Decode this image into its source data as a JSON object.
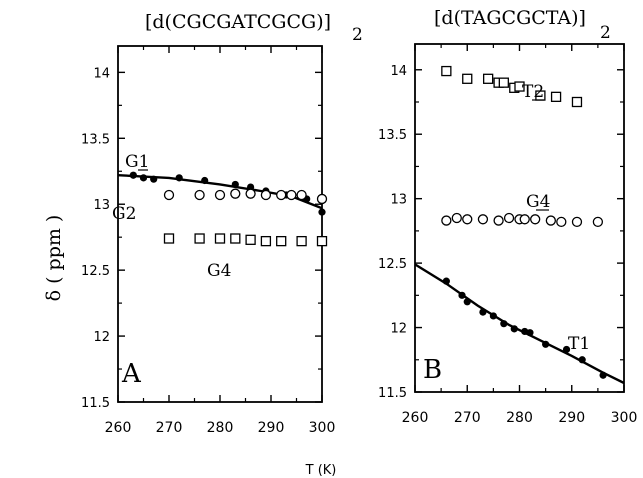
{
  "chart_data": [
    {
      "type": "scatter",
      "title": "[d(CGCGATCGCG)]",
      "title_subscript": "2",
      "panel_label": "A",
      "xlabel": "",
      "ylabel": "δ ( ppm )",
      "xlim": [
        260,
        300
      ],
      "ylim": [
        11.5,
        14.2
      ],
      "xticks": [
        "260",
        "270",
        "280",
        "290",
        "300"
      ],
      "yticks": [
        "11.5",
        "12",
        "12.5",
        "13",
        "13.5",
        "14"
      ],
      "series": [
        {
          "name": "G1",
          "marker": "filled-circle",
          "x": [
            263,
            265,
            267,
            272,
            277,
            283,
            286,
            289,
            293,
            297,
            300
          ],
          "y": [
            13.22,
            13.2,
            13.19,
            13.2,
            13.18,
            13.15,
            13.13,
            13.1,
            13.07,
            13.04,
            12.94
          ]
        },
        {
          "name": "G2",
          "marker": "open-circle",
          "x": [
            270,
            276,
            280,
            283,
            286,
            289,
            292,
            294,
            296,
            300
          ],
          "y": [
            13.07,
            13.07,
            13.07,
            13.08,
            13.08,
            13.07,
            13.07,
            13.07,
            13.07,
            13.04
          ]
        },
        {
          "name": "G4",
          "marker": "open-square",
          "x": [
            270,
            276,
            280,
            283,
            286,
            289,
            292,
            296,
            300
          ],
          "y": [
            12.74,
            12.74,
            12.74,
            12.74,
            12.73,
            12.72,
            12.72,
            12.72,
            12.72
          ]
        }
      ],
      "fit_line": {
        "x": [
          260,
          270,
          280,
          288,
          294,
          300
        ],
        "y": [
          13.22,
          13.2,
          13.15,
          13.1,
          13.06,
          12.97
        ]
      },
      "annotations": [
        "G1",
        "G2",
        "G4"
      ]
    },
    {
      "type": "scatter",
      "title": "[d(TAGCGCTA)]",
      "title_subscript": "2",
      "panel_label": "B",
      "xlabel": "T (K)",
      "ylabel": "",
      "xlim": [
        260,
        300
      ],
      "ylim": [
        11.5,
        14.2
      ],
      "xticks": [
        "260",
        "270",
        "280",
        "290",
        "300"
      ],
      "yticks": [
        "11.5",
        "12",
        "12.5",
        "13",
        "13.5",
        "14"
      ],
      "series": [
        {
          "name": "T2",
          "marker": "open-square",
          "x": [
            266,
            270,
            274,
            276,
            277,
            279,
            280,
            284,
            287,
            291
          ],
          "y": [
            13.99,
            13.93,
            13.93,
            13.9,
            13.9,
            13.86,
            13.87,
            13.8,
            13.79,
            13.75
          ]
        },
        {
          "name": "G4",
          "marker": "open-circle",
          "x": [
            266,
            268,
            270,
            273,
            276,
            278,
            280,
            281,
            283,
            286,
            288,
            291,
            295
          ],
          "y": [
            12.83,
            12.85,
            12.84,
            12.84,
            12.83,
            12.85,
            12.84,
            12.84,
            12.84,
            12.83,
            12.82,
            12.82,
            12.82
          ]
        },
        {
          "name": "T1",
          "marker": "filled-circle",
          "x": [
            266,
            269,
            270,
            273,
            275,
            277,
            279,
            281,
            282,
            285,
            289,
            292,
            296
          ],
          "y": [
            12.36,
            12.25,
            12.2,
            12.12,
            12.09,
            12.03,
            11.99,
            11.97,
            11.96,
            11.87,
            11.83,
            11.75,
            11.63
          ]
        }
      ],
      "fit_line": {
        "x": [
          260,
          266,
          272,
          278,
          284,
          290,
          296,
          300
        ],
        "y": [
          12.49,
          12.34,
          12.17,
          12.02,
          11.9,
          11.78,
          11.65,
          11.57
        ]
      },
      "annotations": [
        "T2",
        "G4",
        "T1"
      ]
    }
  ]
}
